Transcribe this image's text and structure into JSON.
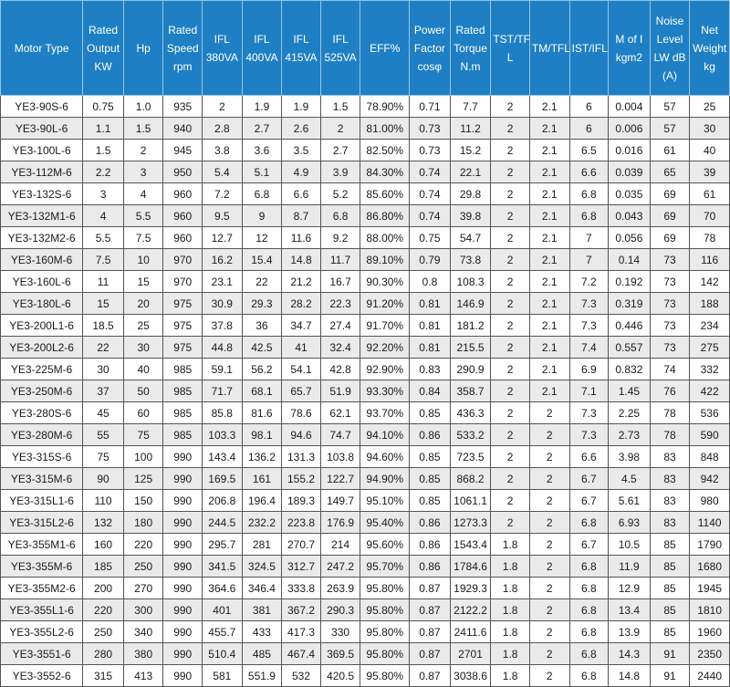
{
  "headers": [
    [
      "Motor Type"
    ],
    [
      "Rated",
      "Output",
      "KW"
    ],
    [
      "Hp"
    ],
    [
      "Rated",
      "Speed",
      "rpm"
    ],
    [
      "IFL",
      "380VA"
    ],
    [
      "IFL",
      "400VA"
    ],
    [
      "IFL",
      "415VA"
    ],
    [
      "IFL",
      "525VA"
    ],
    [
      "EFF%"
    ],
    [
      "Power",
      "Factor",
      "cosφ"
    ],
    [
      "Rated",
      "Torque",
      "N.m"
    ],
    [
      "TST/TF",
      "L"
    ],
    [
      "TM/TFL"
    ],
    [
      "IST/IFL"
    ],
    [
      "M of I",
      "kgm2"
    ],
    [
      "Noise",
      "Level",
      "LW dB",
      "(A)"
    ],
    [
      "Net",
      "Weight",
      "kg"
    ]
  ],
  "rows": [
    [
      "YE3-90S-6",
      "0.75",
      "1.0",
      "935",
      "2",
      "1.9",
      "1.9",
      "1.5",
      "78.90%",
      "0.71",
      "7.7",
      "2",
      "2.1",
      "6",
      "0.004",
      "57",
      "25"
    ],
    [
      "YE3-90L-6",
      "1.1",
      "1.5",
      "940",
      "2.8",
      "2.7",
      "2.6",
      "2",
      "81.00%",
      "0.73",
      "11.2",
      "2",
      "2.1",
      "6",
      "0.006",
      "57",
      "30"
    ],
    [
      "YE3-100L-6",
      "1.5",
      "2",
      "945",
      "3.8",
      "3.6",
      "3.5",
      "2.7",
      "82.50%",
      "0.73",
      "15.2",
      "2",
      "2.1",
      "6.5",
      "0.016",
      "61",
      "40"
    ],
    [
      "YE3-112M-6",
      "2.2",
      "3",
      "950",
      "5.4",
      "5.1",
      "4.9",
      "3.9",
      "84.30%",
      "0.74",
      "22.1",
      "2",
      "2.1",
      "6.6",
      "0.039",
      "65",
      "39"
    ],
    [
      "YE3-132S-6",
      "3",
      "4",
      "960",
      "7.2",
      "6.8",
      "6.6",
      "5.2",
      "85.60%",
      "0.74",
      "29.8",
      "2",
      "2.1",
      "6.8",
      "0.035",
      "69",
      "61"
    ],
    [
      "YE3-132M1-6",
      "4",
      "5.5",
      "960",
      "9.5",
      "9",
      "8.7",
      "6.8",
      "86.80%",
      "0.74",
      "39.8",
      "2",
      "2.1",
      "6.8",
      "0.043",
      "69",
      "70"
    ],
    [
      "YE3-132M2-6",
      "5.5",
      "7.5",
      "960",
      "12.7",
      "12",
      "11.6",
      "9.2",
      "88.00%",
      "0.75",
      "54.7",
      "2",
      "2.1",
      "7",
      "0.056",
      "69",
      "78"
    ],
    [
      "YE3-160M-6",
      "7.5",
      "10",
      "970",
      "16.2",
      "15.4",
      "14.8",
      "11.7",
      "89.10%",
      "0.79",
      "73.8",
      "2",
      "2.1",
      "7",
      "0.14",
      "73",
      "116"
    ],
    [
      "YE3-160L-6",
      "11",
      "15",
      "970",
      "23.1",
      "22",
      "21.2",
      "16.7",
      "90.30%",
      "0.8",
      "108.3",
      "2",
      "2.1",
      "7.2",
      "0.192",
      "73",
      "142"
    ],
    [
      "YE3-180L-6",
      "15",
      "20",
      "975",
      "30.9",
      "29.3",
      "28.2",
      "22.3",
      "91.20%",
      "0.81",
      "146.9",
      "2",
      "2.1",
      "7.3",
      "0.319",
      "73",
      "188"
    ],
    [
      "YE3-200L1-6",
      "18.5",
      "25",
      "975",
      "37.8",
      "36",
      "34.7",
      "27.4",
      "91.70%",
      "0.81",
      "181.2",
      "2",
      "2.1",
      "7.3",
      "0.446",
      "73",
      "234"
    ],
    [
      "YE3-200L2-6",
      "22",
      "30",
      "975",
      "44.8",
      "42.5",
      "41",
      "32.4",
      "92.20%",
      "0.81",
      "215.5",
      "2",
      "2.1",
      "7.4",
      "0.557",
      "73",
      "275"
    ],
    [
      "YE3-225M-6",
      "30",
      "40",
      "985",
      "59.1",
      "56.2",
      "54.1",
      "42.8",
      "92.90%",
      "0.83",
      "290.9",
      "2",
      "2.1",
      "6.9",
      "0.832",
      "74",
      "332"
    ],
    [
      "YE3-250M-6",
      "37",
      "50",
      "985",
      "71.7",
      "68.1",
      "65.7",
      "51.9",
      "93.30%",
      "0.84",
      "358.7",
      "2",
      "2.1",
      "7.1",
      "1.45",
      "76",
      "422"
    ],
    [
      "YE3-280S-6",
      "45",
      "60",
      "985",
      "85.8",
      "81.6",
      "78.6",
      "62.1",
      "93.70%",
      "0.85",
      "436.3",
      "2",
      "2",
      "7.3",
      "2.25",
      "78",
      "536"
    ],
    [
      "YE3-280M-6",
      "55",
      "75",
      "985",
      "103.3",
      "98.1",
      "94.6",
      "74.7",
      "94.10%",
      "0.86",
      "533.2",
      "2",
      "2",
      "7.3",
      "2.73",
      "78",
      "590"
    ],
    [
      "YE3-315S-6",
      "75",
      "100",
      "990",
      "143.4",
      "136.2",
      "131.3",
      "103.8",
      "94.60%",
      "0.85",
      "723.5",
      "2",
      "2",
      "6.6",
      "3.98",
      "83",
      "848"
    ],
    [
      "YE3-315M-6",
      "90",
      "125",
      "990",
      "169.5",
      "161",
      "155.2",
      "122.7",
      "94.90%",
      "0.85",
      "868.2",
      "2",
      "2",
      "6.7",
      "4.5",
      "83",
      "942"
    ],
    [
      "YE3-315L1-6",
      "110",
      "150",
      "990",
      "206.8",
      "196.4",
      "189.3",
      "149.7",
      "95.10%",
      "0.85",
      "1061.1",
      "2",
      "2",
      "6.7",
      "5.61",
      "83",
      "980"
    ],
    [
      "YE3-315L2-6",
      "132",
      "180",
      "990",
      "244.5",
      "232.2",
      "223.8",
      "176.9",
      "95.40%",
      "0.86",
      "1273.3",
      "2",
      "2",
      "6.8",
      "6.93",
      "83",
      "1140"
    ],
    [
      "YE3-355M1-6",
      "160",
      "220",
      "990",
      "295.7",
      "281",
      "270.7",
      "214",
      "95.60%",
      "0.86",
      "1543.4",
      "1.8",
      "2",
      "6.7",
      "10.5",
      "85",
      "1790"
    ],
    [
      "YE3-355M-6",
      "185",
      "250",
      "990",
      "341.5",
      "324.5",
      "312.7",
      "247.2",
      "95.70%",
      "0.86",
      "1784.6",
      "1.8",
      "2",
      "6.8",
      "11.9",
      "85",
      "1680"
    ],
    [
      "YE3-355M2-6",
      "200",
      "270",
      "990",
      "364.6",
      "346.4",
      "333.8",
      "263.9",
      "95.80%",
      "0.87",
      "1929.3",
      "1.8",
      "2",
      "6.8",
      "12.9",
      "85",
      "1945"
    ],
    [
      "YE3-355L1-6",
      "220",
      "300",
      "990",
      "401",
      "381",
      "367.2",
      "290.3",
      "95.80%",
      "0.87",
      "2122.2",
      "1.8",
      "2",
      "6.8",
      "13.4",
      "85",
      "1810"
    ],
    [
      "YE3-355L2-6",
      "250",
      "340",
      "990",
      "455.7",
      "433",
      "417.3",
      "330",
      "95.80%",
      "0.87",
      "2411.6",
      "1.8",
      "2",
      "6.8",
      "13.9",
      "85",
      "1960"
    ],
    [
      "YE3-3551-6",
      "280",
      "380",
      "990",
      "510.4",
      "485",
      "467.4",
      "369.5",
      "95.80%",
      "0.87",
      "2701",
      "1.8",
      "2",
      "6.8",
      "14.3",
      "91",
      "2350"
    ],
    [
      "YE3-3552-6",
      "315",
      "413",
      "990",
      "581",
      "551.9",
      "532",
      "420.5",
      "95.80%",
      "0.87",
      "3038.6",
      "1.8",
      "2",
      "6.8",
      "14.8",
      "91",
      "2440"
    ]
  ],
  "colors": {
    "header_bg": "#1f7fc4",
    "header_text": "#ffffff",
    "row_alt_bg": "#eaeaea",
    "border": "#555555"
  }
}
